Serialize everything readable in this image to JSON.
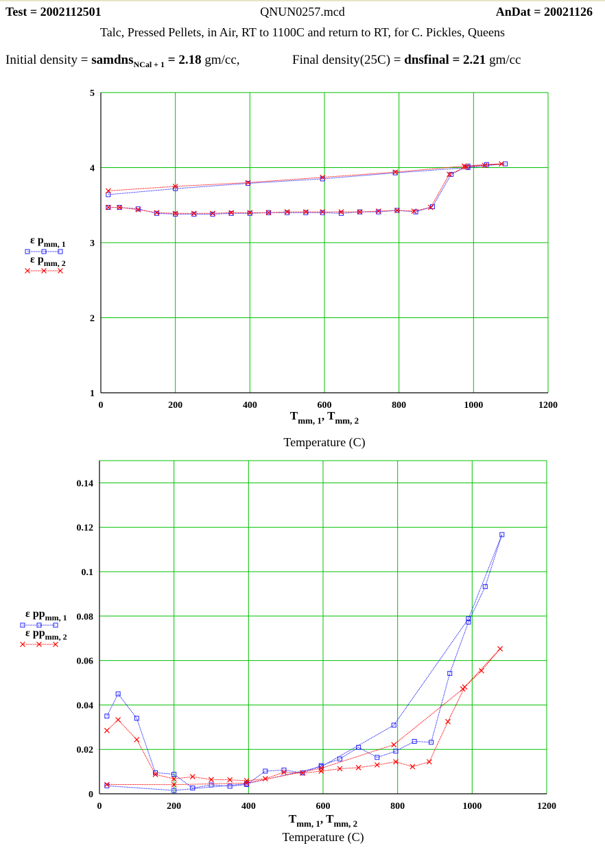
{
  "header": {
    "test_label": "Test = ",
    "test_value": "2002112501",
    "filename": "QNUN0257.mcd",
    "andat_label": "AnDat = ",
    "andat_value": "20021126",
    "subtitle": "Talc, Pressed Pellets, in Air, RT to 1100C and return to RT, for C. Pickles, Queens",
    "initial_density_label": "Initial density = ",
    "initial_density_var": "samdns",
    "initial_density_sub": "NCal + 1",
    "initial_density_value": " = 2.18",
    "initial_density_unit": " gm/cc,",
    "final_density_label": "Final density(25C) = ",
    "final_density_var": "dnsfinal",
    "final_density_value": " = 2.21",
    "final_density_unit": " gm/cc"
  },
  "colors": {
    "grid": "#00c000",
    "series1": "#2020ff",
    "series2": "#ff0000",
    "frame": "#000000"
  },
  "chart_data": [
    {
      "type": "line",
      "xlim": [
        0,
        1200
      ],
      "ylim": [
        1,
        5
      ],
      "xticks": [
        0,
        200,
        400,
        600,
        800,
        1000,
        1200
      ],
      "yticks": [
        1,
        2,
        3,
        4,
        5
      ],
      "grid": true,
      "legend_position": "left",
      "xlabel": "T",
      "xlabel_sub1": "mm, 1",
      "xlabel_sep": ", T",
      "xlabel_sub2": "mm, 2",
      "xtitle": "Temperature (C)",
      "series": [
        {
          "name": "ε p",
          "name_sub": "mm, 1",
          "marker": "square",
          "x": [
            20,
            50,
            100,
            150,
            200,
            250,
            300,
            350,
            400,
            450,
            500,
            550,
            595,
            645,
            695,
            745,
            795,
            845,
            890,
            940,
            985,
            1035,
            1085,
            985,
            790,
            595,
            395,
            200,
            20
          ],
          "y": [
            3.47,
            3.47,
            3.45,
            3.39,
            3.38,
            3.38,
            3.38,
            3.39,
            3.39,
            3.4,
            3.4,
            3.4,
            3.4,
            3.39,
            3.41,
            3.41,
            3.43,
            3.41,
            3.48,
            3.91,
            4.02,
            4.04,
            4.05,
            4.0,
            3.93,
            3.85,
            3.79,
            3.72,
            3.64
          ]
        },
        {
          "name": "ε p",
          "name_sub": "mm, 2",
          "marker": "x",
          "x": [
            20,
            50,
            100,
            150,
            200,
            250,
            300,
            350,
            400,
            450,
            500,
            550,
            595,
            645,
            695,
            745,
            795,
            840,
            885,
            935,
            980,
            1030,
            1075,
            975,
            790,
            595,
            395,
            200,
            20
          ],
          "y": [
            3.47,
            3.47,
            3.44,
            3.4,
            3.39,
            3.39,
            3.39,
            3.4,
            3.4,
            3.4,
            3.41,
            3.41,
            3.41,
            3.41,
            3.41,
            3.42,
            3.43,
            3.42,
            3.47,
            3.91,
            4.01,
            4.03,
            4.05,
            4.02,
            3.94,
            3.87,
            3.8,
            3.75,
            3.69
          ]
        }
      ]
    },
    {
      "type": "line",
      "xlim": [
        0,
        1200
      ],
      "ylim": [
        0,
        0.15
      ],
      "xticks": [
        0,
        200,
        400,
        600,
        800,
        1000,
        1200
      ],
      "yticks": [
        0,
        0.02,
        0.04,
        0.06,
        0.08,
        0.1,
        0.12,
        0.14
      ],
      "grid": true,
      "legend_position": "left",
      "xlabel": "T",
      "xlabel_sub1": "mm, 1",
      "xlabel_sep": ", T",
      "xlabel_sub2": "mm, 2",
      "xtitle": "Temperature (C)",
      "series": [
        {
          "name": "ε pp",
          "name_sub": "mm, 1",
          "marker": "square",
          "x": [
            20,
            50,
            100,
            150,
            200,
            250,
            300,
            350,
            395,
            445,
            495,
            545,
            595,
            645,
            695,
            745,
            795,
            845,
            890,
            940,
            990,
            1035,
            1080,
            990,
            790,
            595,
            395,
            200,
            20
          ],
          "y": [
            0.035,
            0.045,
            0.034,
            0.0095,
            0.0088,
            0.0026,
            0.004,
            0.0034,
            0.0042,
            0.0102,
            0.0107,
            0.0094,
            0.0127,
            0.0157,
            0.0209,
            0.0164,
            0.0192,
            0.0236,
            0.0232,
            0.0542,
            0.0773,
            0.0933,
            0.1167,
            0.0788,
            0.0309,
            0.0122,
            0.0045,
            0.0015,
            0.0036
          ]
        },
        {
          "name": "ε pp",
          "name_sub": "mm, 2",
          "marker": "x",
          "x": [
            20,
            50,
            100,
            150,
            200,
            250,
            300,
            350,
            395,
            445,
            495,
            545,
            595,
            645,
            695,
            745,
            795,
            840,
            885,
            935,
            980,
            1025,
            1075,
            975,
            790,
            595,
            395,
            200,
            20
          ],
          "y": [
            0.0285,
            0.0333,
            0.0244,
            0.0087,
            0.0067,
            0.0077,
            0.0064,
            0.0063,
            0.0059,
            0.0068,
            0.0097,
            0.0093,
            0.0102,
            0.0113,
            0.0118,
            0.013,
            0.0144,
            0.0122,
            0.0144,
            0.0325,
            0.0481,
            0.0554,
            0.0653,
            0.0472,
            0.0221,
            0.0115,
            0.0048,
            0.0041,
            0.0042
          ]
        }
      ]
    }
  ]
}
